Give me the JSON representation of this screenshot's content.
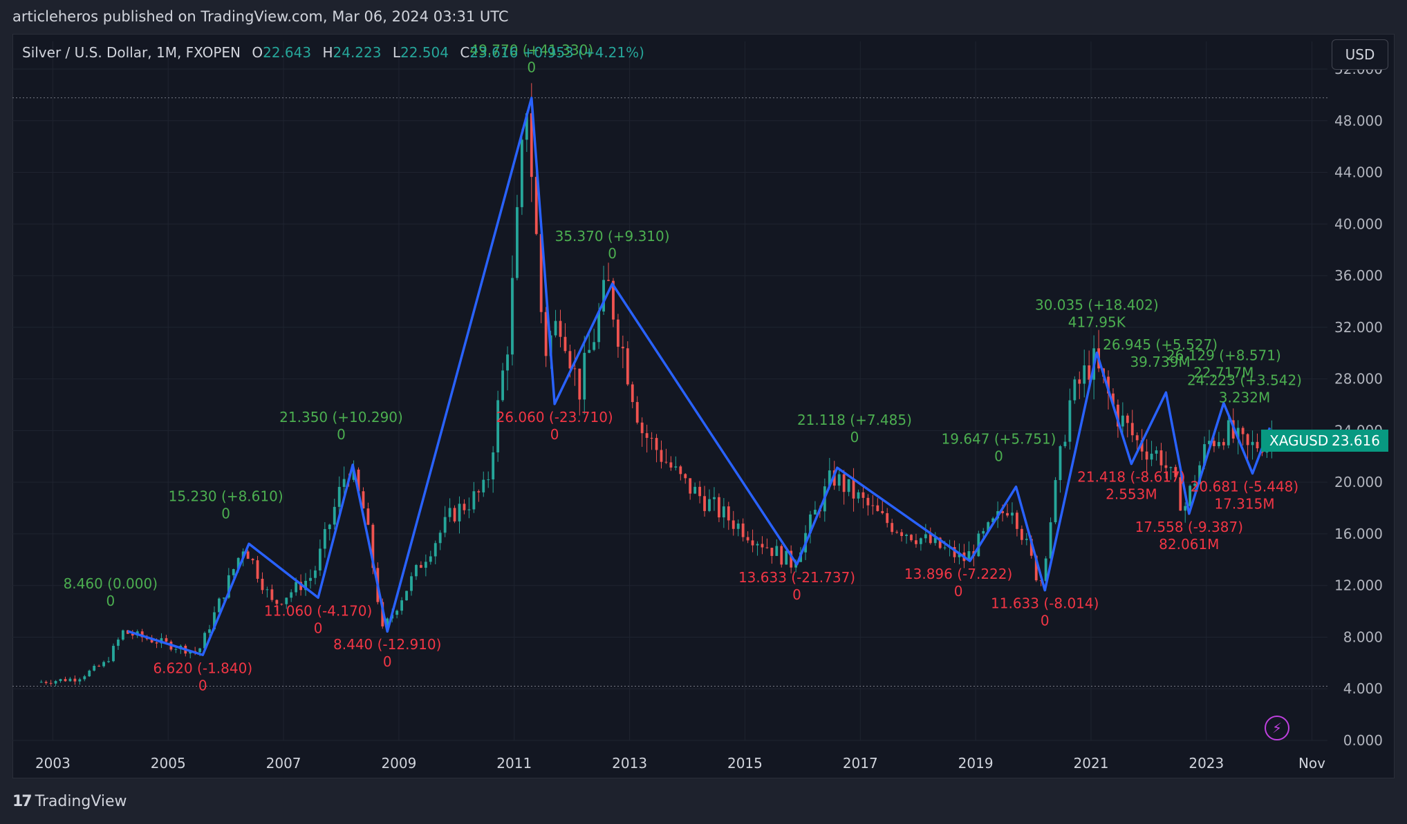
{
  "header": {
    "text": "articleheros published on TradingView.com, Mar 06, 2024 03:31 UTC"
  },
  "legend": {
    "symbol": "Silver / U.S. Dollar, 1M, FXOPEN",
    "o_label": "O",
    "o_value": "22.643",
    "h_label": "H",
    "h_value": "24.223",
    "l_label": "L",
    "l_value": "22.504",
    "c_label": "C",
    "c_value": "23.616",
    "change": "+0.953 (+4.21%)"
  },
  "currency": "USD",
  "price_tag": {
    "symbol": "XAGUSD",
    "value": "23.616"
  },
  "footer": {
    "brand": "TradingView",
    "mark": "17"
  },
  "colors": {
    "up": "#26a69a",
    "down": "#ef5350",
    "zigzag": "#2962ff",
    "label_up": "#4caf50",
    "label_down": "#f23645"
  },
  "icons": {
    "lightning": "lightning-icon",
    "logo": "tradingview-logo"
  },
  "chart_data": {
    "type": "candlestick",
    "ylim": [
      0,
      52
    ],
    "xlim": [
      2002.3,
      2025.1
    ],
    "yticks": [
      "0.000",
      "4.000",
      "8.000",
      "12.000",
      "16.000",
      "20.000",
      "24.000",
      "28.000",
      "32.000",
      "36.000",
      "40.000",
      "44.000",
      "48.000",
      "52.000"
    ],
    "ytick_values": [
      0,
      4,
      8,
      12,
      16,
      20,
      24,
      28,
      32,
      36,
      40,
      44,
      48,
      52
    ],
    "xticks": [
      {
        "t": 2003,
        "label": "2003"
      },
      {
        "t": 2005,
        "label": "2005"
      },
      {
        "t": 2007,
        "label": "2007"
      },
      {
        "t": 2009,
        "label": "2009"
      },
      {
        "t": 2011,
        "label": "2011"
      },
      {
        "t": 2013,
        "label": "2013"
      },
      {
        "t": 2015,
        "label": "2015"
      },
      {
        "t": 2017,
        "label": "2017"
      },
      {
        "t": 2019,
        "label": "2019"
      },
      {
        "t": 2021,
        "label": "2021"
      },
      {
        "t": 2023,
        "label": "2023"
      },
      {
        "t": 2024.83,
        "label": "Nov"
      }
    ],
    "hlines": [
      49.77,
      4.2
    ],
    "anchors": [
      [
        2002.8,
        4.5
      ],
      [
        2003.5,
        4.8
      ],
      [
        2004.0,
        6.0
      ],
      [
        2004.3,
        8.4
      ],
      [
        2005.6,
        6.8
      ],
      [
        2006.4,
        15.2
      ],
      [
        2006.9,
        10.5
      ],
      [
        2007.6,
        12.8
      ],
      [
        2008.2,
        21.3
      ],
      [
        2008.5,
        17.5
      ],
      [
        2008.8,
        8.5
      ],
      [
        2009.5,
        14.0
      ],
      [
        2010.0,
        17.5
      ],
      [
        2010.6,
        19.5
      ],
      [
        2011.0,
        32.0
      ],
      [
        2011.3,
        49.8
      ],
      [
        2011.6,
        30.0
      ],
      [
        2011.9,
        33.0
      ],
      [
        2012.2,
        27.0
      ],
      [
        2012.7,
        35.3
      ],
      [
        2013.3,
        24.0
      ],
      [
        2014.0,
        20.0
      ],
      [
        2014.7,
        17.5
      ],
      [
        2015.9,
        13.7
      ],
      [
        2016.6,
        20.5
      ],
      [
        2017.5,
        17.0
      ],
      [
        2018.9,
        14.0
      ],
      [
        2019.7,
        18.5
      ],
      [
        2020.2,
        12.0
      ],
      [
        2020.7,
        26.0
      ],
      [
        2021.1,
        29.5
      ],
      [
        2021.5,
        25.5
      ],
      [
        2021.9,
        23.0
      ],
      [
        2022.3,
        22.0
      ],
      [
        2022.7,
        18.0
      ],
      [
        2023.1,
        23.0
      ],
      [
        2023.4,
        24.0
      ],
      [
        2023.8,
        22.5
      ],
      [
        2024.2,
        23.6
      ]
    ],
    "zigzag": [
      [
        2004.3,
        8.46
      ],
      [
        2005.6,
        6.62
      ],
      [
        2006.4,
        15.23
      ],
      [
        2007.6,
        11.06
      ],
      [
        2008.2,
        21.35
      ],
      [
        2008.8,
        8.44
      ],
      [
        2011.3,
        49.77
      ],
      [
        2011.7,
        26.06
      ],
      [
        2012.7,
        35.37
      ],
      [
        2015.9,
        13.63
      ],
      [
        2016.6,
        21.12
      ],
      [
        2018.9,
        13.9
      ],
      [
        2019.7,
        19.65
      ],
      [
        2020.2,
        11.63
      ],
      [
        2021.1,
        30.03
      ],
      [
        2021.7,
        21.42
      ],
      [
        2022.3,
        26.95
      ],
      [
        2022.7,
        17.56
      ],
      [
        2023.3,
        26.13
      ],
      [
        2023.8,
        20.68
      ],
      [
        2024.1,
        24.22
      ]
    ],
    "labels": [
      {
        "t": 2004.0,
        "v": 8.46,
        "text": "8.460 (0.000)",
        "sub": "0",
        "kind": "up"
      },
      {
        "t": 2005.6,
        "v": 6.62,
        "text": "6.620 (-1.840)",
        "sub": "0",
        "kind": "down"
      },
      {
        "t": 2006.0,
        "v": 15.23,
        "text": "15.230 (+8.610)",
        "sub": "0",
        "kind": "up"
      },
      {
        "t": 2007.6,
        "v": 11.06,
        "text": "11.060 (-4.170)",
        "sub": "0",
        "kind": "down"
      },
      {
        "t": 2008.0,
        "v": 21.35,
        "text": "21.350 (+10.290)",
        "sub": "0",
        "kind": "up"
      },
      {
        "t": 2008.8,
        "v": 8.44,
        "text": "8.440 (-12.910)",
        "sub": "0",
        "kind": "down"
      },
      {
        "t": 2011.3,
        "v": 49.77,
        "text": "49.770 (+41.330)",
        "sub": "0",
        "kind": "up"
      },
      {
        "t": 2011.7,
        "v": 26.06,
        "text": "26.060 (-23.710)",
        "sub": "0",
        "kind": "down"
      },
      {
        "t": 2012.7,
        "v": 35.37,
        "text": "35.370 (+9.310)",
        "sub": "0",
        "kind": "up"
      },
      {
        "t": 2015.9,
        "v": 13.63,
        "text": "13.633 (-21.737)",
        "sub": "0",
        "kind": "down"
      },
      {
        "t": 2016.9,
        "v": 21.12,
        "text": "21.118 (+7.485)",
        "sub": "0",
        "kind": "up"
      },
      {
        "t": 2018.7,
        "v": 13.9,
        "text": "13.896 (-7.222)",
        "sub": "0",
        "kind": "down"
      },
      {
        "t": 2019.4,
        "v": 19.65,
        "text": "19.647 (+5.751)",
        "sub": "0",
        "kind": "up"
      },
      {
        "t": 2020.2,
        "v": 11.63,
        "text": "11.633 (-8.014)",
        "sub": "0",
        "kind": "down"
      },
      {
        "t": 2021.1,
        "v": 30.03,
        "text": "30.035 (+18.402)",
        "sub": "417.95K",
        "kind": "up"
      },
      {
        "t": 2021.7,
        "v": 21.42,
        "text": "21.418 (-8.617)",
        "sub": "2.553M",
        "kind": "down"
      },
      {
        "t": 2022.2,
        "v": 26.95,
        "text": "26.945 (+5.527)",
        "sub": "39.739M",
        "kind": "up"
      },
      {
        "t": 2022.7,
        "v": 17.56,
        "text": "17.558 (-9.387)",
        "sub": "82.061M",
        "kind": "down"
      },
      {
        "t": 2023.3,
        "v": 26.13,
        "text": "26.129 (+8.571)",
        "sub": "22.717M",
        "kind": "up"
      },
      {
        "t": 2023.8,
        "v": 20.68,
        "text": "20.681 (-5.448)",
        "sub": "17.315M",
        "kind": "down"
      },
      {
        "t": 2024.1,
        "v": 24.22,
        "text": "24.223 (+3.542)",
        "sub": "3.232M",
        "kind": "up"
      }
    ]
  }
}
